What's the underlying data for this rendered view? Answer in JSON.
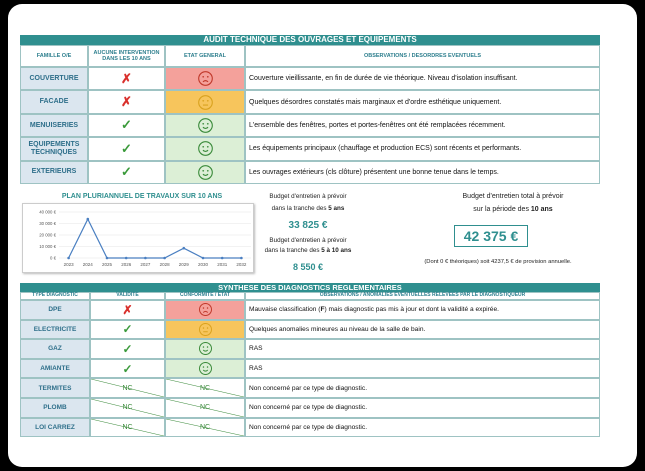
{
  "audit": {
    "title": "AUDIT TECHNIQUE DES OUVRAGES ET EQUIPEMENTS",
    "columns": [
      "FAMILLE O/E",
      "AUCUNE INTERVENTION DANS LES 10 ANS",
      "ETAT GENERAL",
      "OBSERVATIONS / DESORDRES EVENTUELS"
    ],
    "rows": [
      {
        "family": "COUVERTURE",
        "mark": "✗",
        "obs": [
          "Couverture vieillissante, en fin de durée de vie théorique. Niveau d'isolation insuffisant."
        ]
      },
      {
        "family": "FACADE",
        "mark": "✗",
        "obs": [
          "Quelques désordres constatés mais marginaux et d'ordre esthétique uniquement."
        ]
      },
      {
        "family": "MENUISERIES",
        "mark": "✓",
        "obs": [
          "L'ensemble des fenêtres, portes et portes-fenêtres ont été remplacées récemment."
        ]
      },
      {
        "family": "EQUIPEMENTS TECHNIQUES",
        "mark": "✓",
        "obs": [
          "Les équipements principaux (chauffage et production ECS) sont récents et performants."
        ]
      },
      {
        "family": "EXTERIEURS",
        "mark": "✓",
        "obs": [
          "Les ouvrages extérieurs (cls clôture) présentent une bonne tenue dans le temps."
        ]
      }
    ]
  },
  "chart_data": {
    "type": "line",
    "title": "PLAN PLURIANNUEL DE TRAVAUX SUR 10 ANS",
    "categories": [
      "2023",
      "2024",
      "2025",
      "2026",
      "2027",
      "2028",
      "2029",
      "2030",
      "2031",
      "2032"
    ],
    "values": [
      0,
      33825,
      0,
      0,
      0,
      0,
      8550,
      0,
      0,
      0
    ],
    "color": "#4a7fc1",
    "ylim": [
      0,
      40000
    ],
    "yticks": [
      {
        "value": 0,
        "label": "0 €"
      },
      {
        "value": 10000,
        "label": "10 000 €"
      },
      {
        "value": 20000,
        "label": "20 000 €"
      },
      {
        "value": 30000,
        "label": "30 000 €"
      },
      {
        "value": 40000,
        "label": "40 000 €"
      }
    ],
    "grid": true
  },
  "budget": {
    "short_lines": [
      "Budget d'entretien à prévoir",
      "dans la tranche des ",
      "5 ans"
    ],
    "short_value": "33 825 €",
    "mid_lines": [
      "Budget d'entretien à prévoir",
      "dans la tranche des ",
      "5 à 10 ans"
    ],
    "mid_value": "8 550 €",
    "total_lines": [
      "Budget d'entretien total à prévoir",
      "sur la période des ",
      "10 ans"
    ],
    "total_value": "42 375 €",
    "total_note": "(Dont 0 € théoriques) soit 4237,5 € de provision annuelle."
  },
  "diagnostics": {
    "title": "SYNTHESE DES DIAGNOSTICS REGLEMENTAIRES",
    "columns": [
      "TYPE DIAGNOSTIC",
      "VALIDITE",
      "CONFORMITE / ETAT",
      "OBSERVATIONS / ANOMALIES EVENTUELLES RELEVEES PAR LE DIAGNOSTIQUEUR"
    ],
    "rows": [
      {
        "type": "DPE",
        "validity": "✗",
        "state": "",
        "obs": [
          "Mauvaise classification (",
          "F",
          ") mais diagnostic pas mis à jour et dont la validité a expirée."
        ]
      },
      {
        "type": "ELECTRICITE",
        "validity": "✓",
        "state": "",
        "obs": [
          "Quelques anomalies mineures au niveau de la salle de bain."
        ]
      },
      {
        "type": "GAZ",
        "validity": "✓",
        "state": "",
        "obs": [
          "RAS"
        ]
      },
      {
        "type": "AMIANTE",
        "validity": "✓",
        "state": "",
        "obs": [
          "RAS"
        ]
      },
      {
        "type": "TERMITES",
        "validity": "NC",
        "state": "NC",
        "obs": [
          "Non concerné par ce type de diagnostic."
        ]
      },
      {
        "type": "PLOMB",
        "validity": "NC",
        "state": "NC",
        "obs": [
          "Non concerné par ce type de diagnostic."
        ]
      },
      {
        "type": "LOI CARREZ",
        "validity": "NC",
        "state": "NC",
        "obs": [
          "Non concerné par ce type de diagnostic."
        ]
      }
    ]
  }
}
